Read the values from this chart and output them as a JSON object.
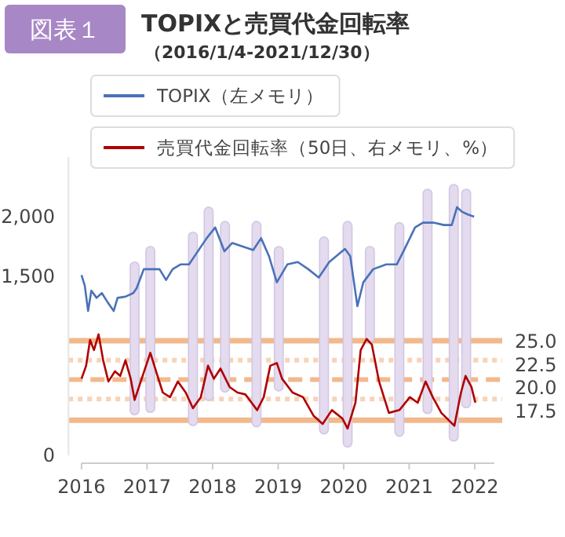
{
  "chart_data": {
    "type": "line",
    "title": "TOPIXと売買代金回転率",
    "subtitle": "（2016/1/4-2021/12/30）",
    "annotations": [
      "図表１"
    ],
    "xlim": [
      2015.8,
      2022.3
    ],
    "xticks": [
      2016,
      2017,
      2018,
      2019,
      2020,
      2021,
      2022
    ],
    "ylim": [
      0,
      2500
    ],
    "yticks": [
      0,
      {
        "value": 1500,
        "label": "1,500"
      },
      {
        "value": 2000,
        "label": "2,000"
      }
    ],
    "y2lim": [
      12.7,
      45
    ],
    "y2ticks": [
      {
        "value": 17.5,
        "label": "17.5"
      },
      {
        "value": 20,
        "label": "20.0"
      },
      {
        "value": 22.5,
        "label": "22.5"
      },
      {
        "value": 25,
        "label": "25.0"
      }
    ],
    "legend": "top",
    "ref_lines": [
      {
        "axis": "y2",
        "value": 25.1,
        "color": "#f2b98c",
        "line_style": "solid"
      },
      {
        "axis": "y2",
        "value": 23.0,
        "color": "#f7d3b8",
        "line_style": "dotted"
      },
      {
        "axis": "y2",
        "value": 20.9,
        "color": "#f2b98c",
        "line_style": "dashed"
      },
      {
        "axis": "y2",
        "value": 18.8,
        "color": "#f7d3b8",
        "line_style": "dotted"
      },
      {
        "axis": "y2",
        "value": 16.5,
        "color": "#f2b98c",
        "line_style": "solid"
      }
    ],
    "series": [
      {
        "type": "bar",
        "color": "#e4dbef",
        "x": [
          2016.81,
          2017.05,
          2017.7,
          2017.94,
          2018.19,
          2018.67,
          2019.01,
          2019.7,
          2020.06,
          2020.4,
          2020.85,
          2021.28,
          2021.68,
          2021.87
        ],
        "base": [
          340,
          360,
          250,
          460,
          530,
          240,
          540,
          180,
          70,
          950,
          160,
          350,
          120,
          400
        ],
        "values": [
          1280,
          1390,
          1620,
          1620,
          1430,
          1720,
          1210,
          1650,
          1890,
          800,
          1790,
          1880,
          2150,
          1830
        ]
      },
      {
        "name": "TOPIX（左メモリ）",
        "color": "#4a72b8",
        "x": [
          2016.0,
          2016.05,
          2016.1,
          2016.15,
          2016.23,
          2016.31,
          2016.39,
          2016.49,
          2016.55,
          2016.67,
          2016.79,
          2016.84,
          2016.95,
          2017.05,
          2017.19,
          2017.29,
          2017.39,
          2017.51,
          2017.64,
          2017.75,
          2017.91,
          2018.04,
          2018.18,
          2018.3,
          2018.46,
          2018.62,
          2018.74,
          2018.86,
          2018.98,
          2019.14,
          2019.3,
          2019.46,
          2019.62,
          2019.78,
          2020.02,
          2020.1,
          2020.21,
          2020.3,
          2020.45,
          2020.65,
          2020.81,
          2020.93,
          2021.09,
          2021.21,
          2021.37,
          2021.53,
          2021.65,
          2021.73,
          2021.81,
          2021.89,
          2021.99
        ],
        "values": [
          1510,
          1420,
          1210,
          1380,
          1320,
          1360,
          1290,
          1210,
          1320,
          1330,
          1360,
          1400,
          1560,
          1560,
          1560,
          1470,
          1560,
          1600,
          1600,
          1690,
          1820,
          1910,
          1710,
          1780,
          1750,
          1720,
          1820,
          1670,
          1450,
          1600,
          1620,
          1560,
          1490,
          1620,
          1730,
          1670,
          1250,
          1450,
          1560,
          1600,
          1600,
          1730,
          1910,
          1950,
          1950,
          1930,
          1930,
          2080,
          2040,
          2020,
          2000
        ]
      },
      {
        "axis": "y2",
        "name": "売買代金回転率（50日、右メモリ、%）",
        "color": "#b00000",
        "x": [
          2016.0,
          2016.07,
          2016.13,
          2016.19,
          2016.26,
          2016.33,
          2016.41,
          2016.51,
          2016.59,
          2016.67,
          2016.75,
          2016.81,
          2016.89,
          2017.05,
          2017.15,
          2017.24,
          2017.35,
          2017.47,
          2017.59,
          2017.7,
          2017.82,
          2017.93,
          2018.02,
          2018.12,
          2018.26,
          2018.38,
          2018.5,
          2018.68,
          2018.78,
          2018.88,
          2018.98,
          2019.06,
          2019.22,
          2019.38,
          2019.54,
          2019.68,
          2019.82,
          2019.98,
          2020.06,
          2020.18,
          2020.26,
          2020.35,
          2020.43,
          2020.54,
          2020.69,
          2020.85,
          2021.01,
          2021.13,
          2021.25,
          2021.36,
          2021.49,
          2021.69,
          2021.79,
          2021.86,
          2021.95,
          2022.01
        ],
        "values": [
          21.0,
          22.4,
          25.2,
          24.1,
          25.8,
          23.0,
          20.7,
          21.8,
          21.3,
          23.0,
          21.0,
          18.7,
          20.4,
          23.8,
          21.5,
          19.5,
          19.0,
          20.7,
          19.5,
          17.8,
          19.0,
          22.4,
          21.0,
          22.1,
          20.1,
          19.5,
          19.3,
          17.6,
          19.0,
          22.4,
          22.7,
          21.0,
          19.5,
          19.0,
          17.0,
          16.1,
          17.6,
          16.7,
          15.6,
          18.4,
          24.1,
          25.3,
          24.7,
          20.7,
          17.3,
          17.6,
          19.0,
          18.4,
          20.7,
          19.0,
          17.3,
          15.9,
          19.5,
          21.3,
          20.1,
          18.4
        ]
      }
    ]
  }
}
